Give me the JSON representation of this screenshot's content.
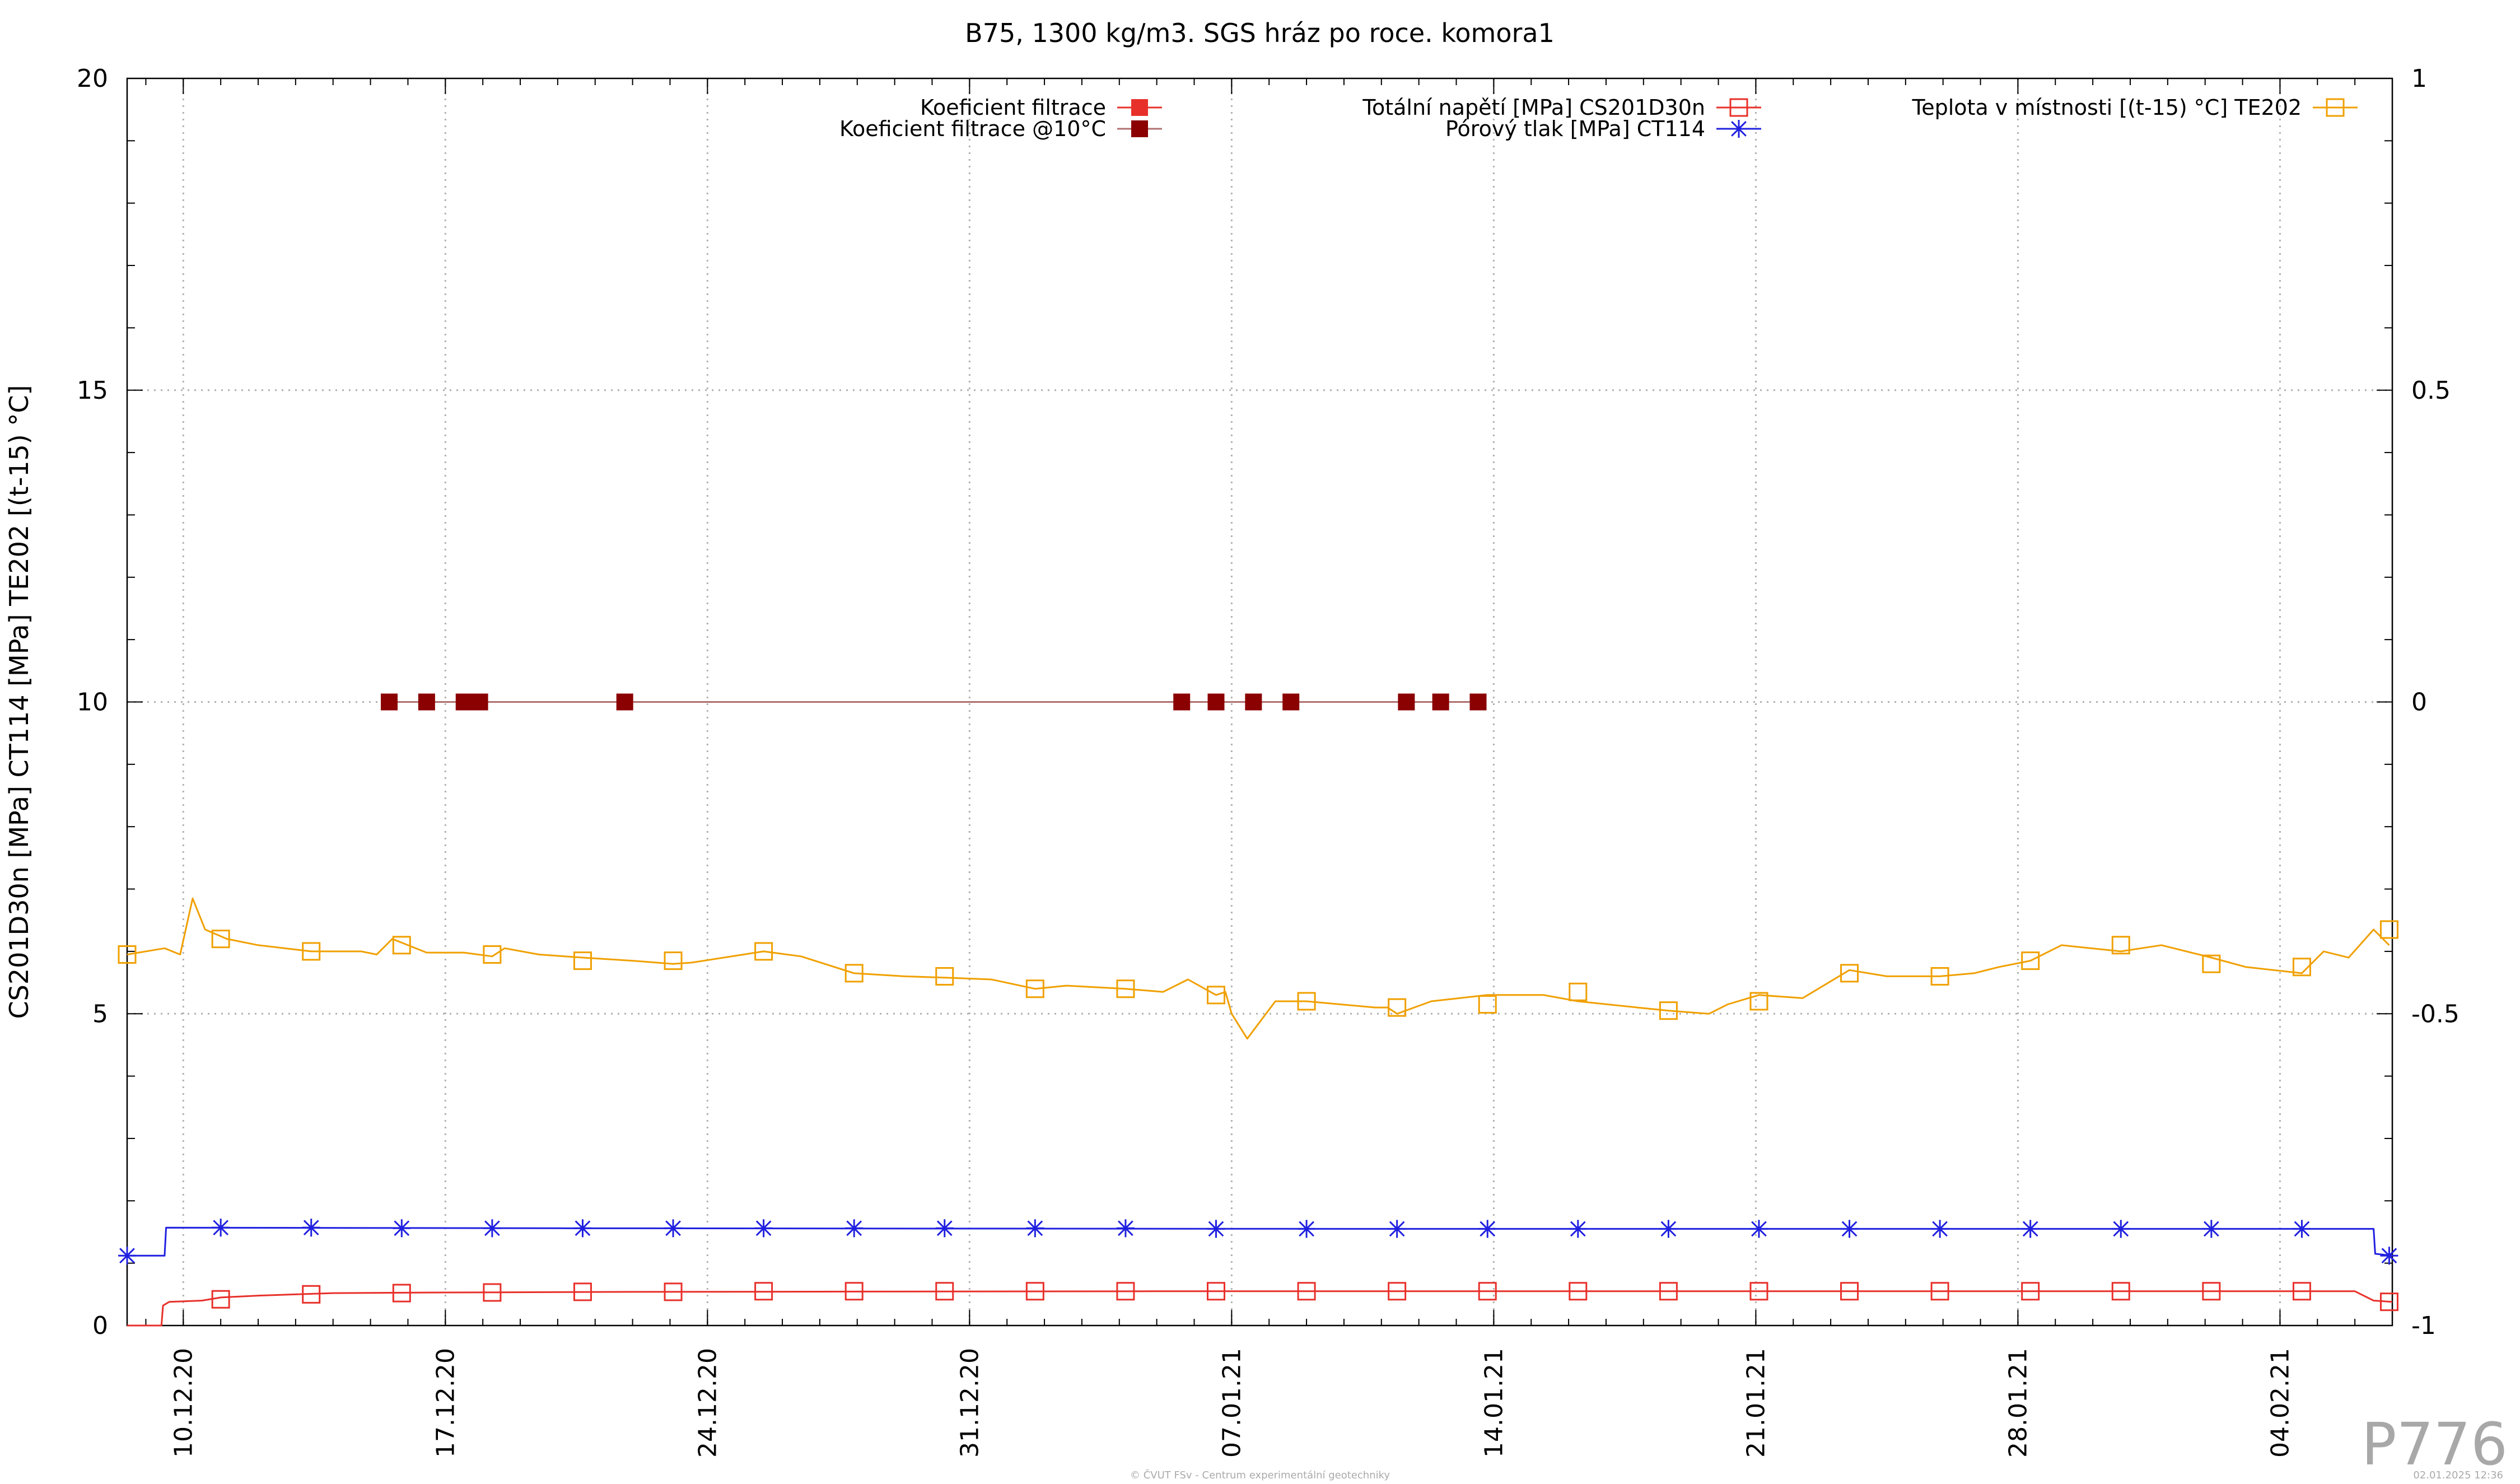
{
  "chart_data": {
    "type": "line",
    "title": "B75, 1300 kg/m3. SGS hráz po roce. komora1",
    "ylabel": "CS201D30n [MPa] CT114 [MPa] TE202 [(t-15) °C]",
    "xlabel": "",
    "ylim": [
      0,
      20
    ],
    "y2lim": [
      -1,
      1
    ],
    "xlim": [
      "2020-12-08 12:00",
      "2021-02-07 00:00"
    ],
    "yticks": [
      0,
      5,
      10,
      15,
      20
    ],
    "y2ticks": [
      -1,
      -0.5,
      0,
      0.5,
      1
    ],
    "y2tick_labels": [
      "-1",
      "-0.5",
      "0",
      "0.5",
      "1"
    ],
    "xticks": [
      "2020-12-10",
      "2020-12-17",
      "2020-12-24",
      "2020-12-31",
      "2021-01-07",
      "2021-01-14",
      "2021-01-21",
      "2021-01-28",
      "2021-02-04"
    ],
    "xtick_labels": [
      "10.12.20",
      "17.12.20",
      "24.12.20",
      "31.12.20",
      "07.01.21",
      "14.01.21",
      "21.01.21",
      "28.01.21",
      "04.02.21"
    ],
    "grid": true,
    "legend_position": "top",
    "series": [
      {
        "name": "Koeficient filtrace",
        "axis": "y2",
        "color": "#e8302a",
        "marker": "filled-square",
        "x": [],
        "y": []
      },
      {
        "name": "Koeficient filtrace @10°C",
        "axis": "y2",
        "color": "#8b0000",
        "marker": "filled-square",
        "x": [
          "2020-12-15 12:00",
          "2020-12-16 12:00",
          "2020-12-17 12:00",
          "2020-12-17 22:00",
          "2020-12-21 19:00",
          "2021-01-05 16:00",
          "2021-01-06 14:00",
          "2021-01-07 14:00",
          "2021-01-08 14:00",
          "2021-01-11 16:00",
          "2021-01-12 14:00",
          "2021-01-13 14:00"
        ],
        "y": [
          0,
          0,
          0,
          0,
          0,
          0,
          0,
          0,
          0,
          0,
          0,
          0
        ]
      },
      {
        "name": "Totální napětí [MPa] CS201D30n",
        "axis": "y",
        "color": "#e8302a",
        "marker": "open-square",
        "x": [
          "2020-12-08 12:00",
          "2020-12-09 10:00",
          "2020-12-09 11:00",
          "2020-12-09 15:00",
          "2020-12-10 12:00",
          "2020-12-11 00:00",
          "2020-12-12 00:00",
          "2020-12-14 00:00",
          "2020-12-17 00:00",
          "2020-12-22 00:00",
          "2021-01-05 00:00",
          "2021-01-20 00:00",
          "2021-02-06 00:00",
          "2021-02-06 12:00",
          "2021-02-07 00:00"
        ],
        "y": [
          0.0,
          0.0,
          0.32,
          0.38,
          0.4,
          0.45,
          0.48,
          0.52,
          0.53,
          0.54,
          0.55,
          0.55,
          0.55,
          0.4,
          0.38
        ],
        "marker_x": [
          "2020-12-11 00:00",
          "2020-12-13 10:00",
          "2020-12-15 20:00",
          "2020-12-18 06:00",
          "2020-12-20 16:00",
          "2020-12-23 02:00",
          "2020-12-25 12:00",
          "2020-12-27 22:00",
          "2020-12-30 08:00",
          "2021-01-01 18:00",
          "2021-01-04 04:00",
          "2021-01-06 14:00",
          "2021-01-09 00:00",
          "2021-01-11 10:00",
          "2021-01-13 20:00",
          "2021-01-16 06:00",
          "2021-01-18 16:00",
          "2021-01-21 02:00",
          "2021-01-23 12:00",
          "2021-01-25 22:00",
          "2021-01-28 08:00",
          "2021-01-30 18:00",
          "2021-02-02 04:00",
          "2021-02-04 14:00",
          "2021-02-06 22:00"
        ],
        "marker_y": [
          0.42,
          0.5,
          0.52,
          0.53,
          0.54,
          0.54,
          0.55,
          0.55,
          0.55,
          0.55,
          0.55,
          0.55,
          0.55,
          0.55,
          0.55,
          0.55,
          0.55,
          0.55,
          0.55,
          0.55,
          0.55,
          0.55,
          0.55,
          0.55,
          0.38
        ]
      },
      {
        "name": "Pórový tlak [MPa] CT114",
        "axis": "y",
        "color": "#2020e0",
        "marker": "asterisk",
        "x": [
          "2020-12-08 12:00",
          "2020-12-09 12:00",
          "2020-12-09 13:00",
          "2020-12-20 00:00",
          "2021-01-10 00:00",
          "2021-02-06 12:00",
          "2021-02-06 13:00",
          "2021-02-07 00:00"
        ],
        "y": [
          1.12,
          1.12,
          1.57,
          1.56,
          1.55,
          1.55,
          1.15,
          1.12
        ],
        "marker_x": [
          "2020-12-08 12:00",
          "2020-12-11 00:00",
          "2020-12-13 10:00",
          "2020-12-15 20:00",
          "2020-12-18 06:00",
          "2020-12-20 16:00",
          "2020-12-23 02:00",
          "2020-12-25 12:00",
          "2020-12-27 22:00",
          "2020-12-30 08:00",
          "2021-01-01 18:00",
          "2021-01-04 04:00",
          "2021-01-06 14:00",
          "2021-01-09 00:00",
          "2021-01-11 10:00",
          "2021-01-13 20:00",
          "2021-01-16 06:00",
          "2021-01-18 16:00",
          "2021-01-21 02:00",
          "2021-01-23 12:00",
          "2021-01-25 22:00",
          "2021-01-28 08:00",
          "2021-01-30 18:00",
          "2021-02-02 04:00",
          "2021-02-04 14:00",
          "2021-02-06 22:00"
        ],
        "marker_y": [
          1.12,
          1.57,
          1.57,
          1.56,
          1.56,
          1.56,
          1.56,
          1.56,
          1.56,
          1.56,
          1.56,
          1.56,
          1.55,
          1.55,
          1.55,
          1.55,
          1.55,
          1.55,
          1.55,
          1.55,
          1.55,
          1.55,
          1.55,
          1.55,
          1.55,
          1.12
        ]
      },
      {
        "name": "Teplota v místnosti [(t-15) °C] TE202",
        "axis": "y",
        "color": "#f0a000",
        "marker": "open-square",
        "x": [
          "2020-12-08 12:00",
          "2020-12-09 12:00",
          "2020-12-09 22:00",
          "2020-12-10 06:00",
          "2020-12-10 14:00",
          "2020-12-11 04:00",
          "2020-12-12 00:00",
          "2020-12-13 10:00",
          "2020-12-14 18:00",
          "2020-12-15 04:00",
          "2020-12-15 14:00",
          "2020-12-16 12:00",
          "2020-12-17 12:00",
          "2020-12-18 06:00",
          "2020-12-18 14:00",
          "2020-12-19 12:00",
          "2020-12-20 16:00",
          "2020-12-22 00:00",
          "2020-12-23 02:00",
          "2020-12-23 14:00",
          "2020-12-25 12:00",
          "2020-12-26 12:00",
          "2020-12-27 22:00",
          "2020-12-29 06:00",
          "2020-12-30 08:00",
          "2020-12-31 14:00",
          "2021-01-01 18:00",
          "2021-01-02 14:00",
          "2021-01-04 04:00",
          "2021-01-05 04:00",
          "2021-01-05 20:00",
          "2021-01-06 14:00",
          "2021-01-06 20:00",
          "2021-01-07 00:00",
          "2021-01-07 10:00",
          "2021-01-08 04:00",
          "2021-01-09 00:00",
          "2021-01-10 20:00",
          "2021-01-11 04:00",
          "2021-01-11 10:00",
          "2021-01-12 08:00",
          "2021-01-13 20:00",
          "2021-01-15 08:00",
          "2021-01-16 06:00",
          "2021-01-17 20:00",
          "2021-01-18 16:00",
          "2021-01-19 18:00",
          "2021-01-20 06:00",
          "2021-01-21 02:00",
          "2021-01-22 06:00",
          "2021-01-23 12:00",
          "2021-01-24 12:00",
          "2021-01-25 22:00",
          "2021-01-26 20:00",
          "2021-01-27 12:00",
          "2021-01-28 08:00",
          "2021-01-29 04:00",
          "2021-01-30 18:00",
          "2021-01-31 20:00",
          "2021-02-02 04:00",
          "2021-02-03 02:00",
          "2021-02-04 14:00",
          "2021-02-05 04:00",
          "2021-02-05 20:00",
          "2021-02-06 12:00",
          "2021-02-06 22:00"
        ],
        "y": [
          5.95,
          6.05,
          5.95,
          6.85,
          6.35,
          6.2,
          6.1,
          6.0,
          6.0,
          5.95,
          6.2,
          5.98,
          5.98,
          5.92,
          6.05,
          5.95,
          5.9,
          5.85,
          5.8,
          5.82,
          6.0,
          5.92,
          5.65,
          5.6,
          5.58,
          5.55,
          5.4,
          5.45,
          5.4,
          5.35,
          5.55,
          5.3,
          5.35,
          5.0,
          4.6,
          5.2,
          5.2,
          5.1,
          5.1,
          5.0,
          5.2,
          5.3,
          5.3,
          5.2,
          5.1,
          5.05,
          5.0,
          5.15,
          5.3,
          5.25,
          5.7,
          5.6,
          5.6,
          5.65,
          5.75,
          5.85,
          6.1,
          6.0,
          6.1,
          5.9,
          5.75,
          5.65,
          6.0,
          5.9,
          6.35,
          6.1
        ],
        "marker_x": [
          "2020-12-08 12:00",
          "2020-12-11 00:00",
          "2020-12-13 10:00",
          "2020-12-15 20:00",
          "2020-12-18 06:00",
          "2020-12-20 16:00",
          "2020-12-23 02:00",
          "2020-12-25 12:00",
          "2020-12-27 22:00",
          "2020-12-30 08:00",
          "2021-01-01 18:00",
          "2021-01-04 04:00",
          "2021-01-06 14:00",
          "2021-01-09 00:00",
          "2021-01-11 10:00",
          "2021-01-13 20:00",
          "2021-01-16 06:00",
          "2021-01-18 16:00",
          "2021-01-21 02:00",
          "2021-01-23 12:00",
          "2021-01-25 22:00",
          "2021-01-28 08:00",
          "2021-01-30 18:00",
          "2021-02-02 04:00",
          "2021-02-04 14:00",
          "2021-02-06 22:00"
        ],
        "marker_y": [
          5.95,
          6.2,
          6.0,
          6.1,
          5.95,
          5.85,
          5.85,
          6.0,
          5.65,
          5.6,
          5.4,
          5.4,
          5.3,
          5.2,
          5.1,
          5.15,
          5.35,
          5.05,
          5.2,
          5.65,
          5.6,
          5.85,
          6.1,
          5.8,
          5.75,
          6.35
        ]
      }
    ]
  },
  "watermark": "P776",
  "footer_left": "© ČVUT FSv - Centrum experimentální geotechniky",
  "footer_right": "02.01.2025 12:36"
}
